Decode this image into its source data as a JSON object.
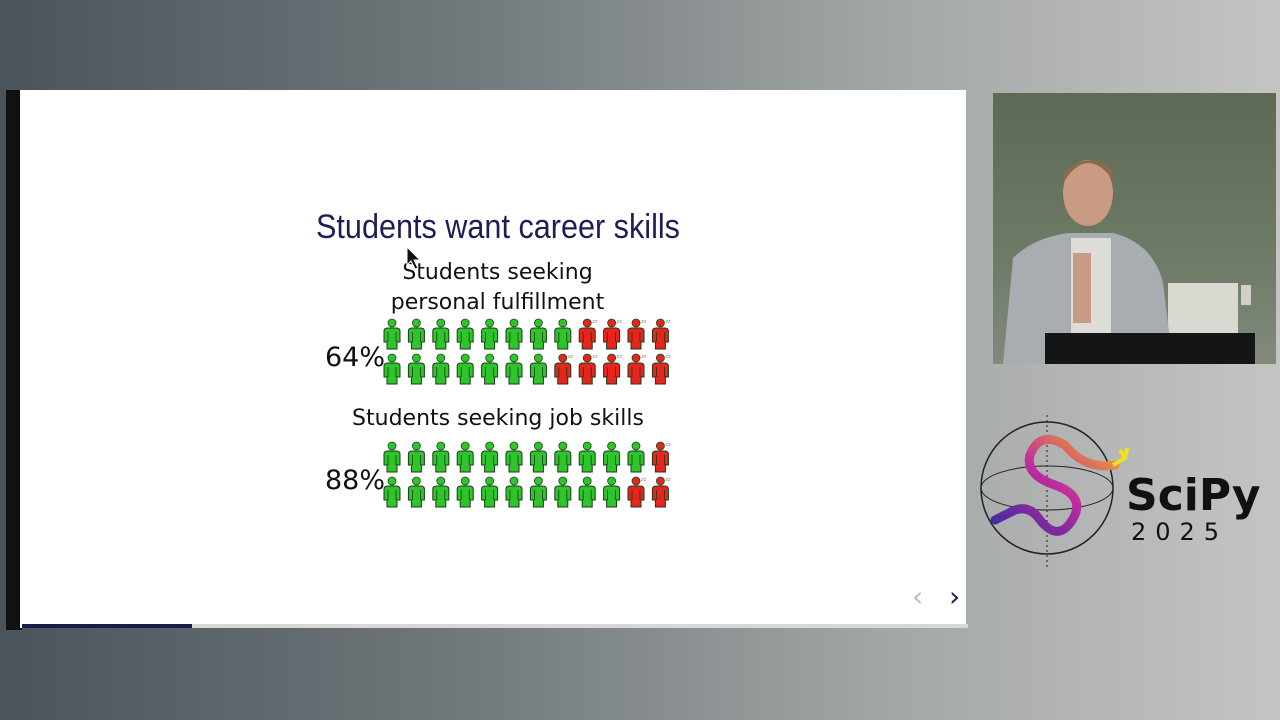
{
  "slide": {
    "title": "Students want career skills",
    "progress_percent": 18,
    "nav": {
      "prev": "‹",
      "next": "›"
    },
    "charts": [
      {
        "label_line1": "Students seeking",
        "label_line2": "personal fulfillment",
        "percent_label": "64%",
        "rows": [
          {
            "green": 8,
            "red": 4
          },
          {
            "green": 7,
            "red": 5
          }
        ]
      },
      {
        "label_line1": "Students seeking job skills",
        "label_line2": "",
        "percent_label": "88%",
        "rows": [
          {
            "green": 11,
            "red": 1
          },
          {
            "green": 10,
            "red": 2
          }
        ]
      }
    ],
    "colors": {
      "green": "#2ec52a",
      "red": "#e8241c",
      "title": "#1c1f55"
    }
  },
  "logo": {
    "name": "SciPy",
    "year": "2025"
  }
}
